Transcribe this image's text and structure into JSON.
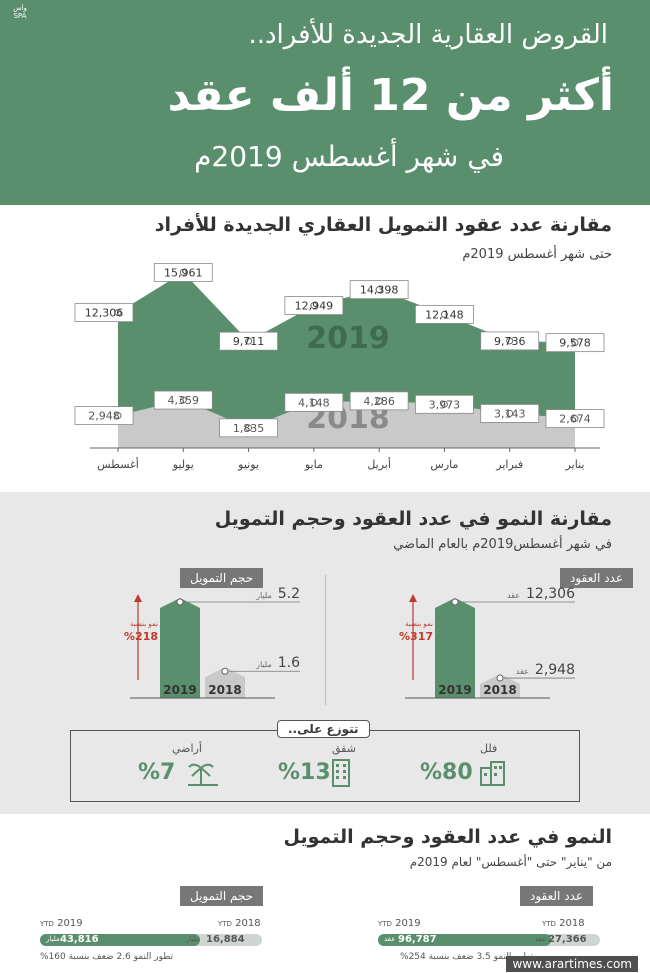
{
  "header": {
    "line1": "القروض العقارية الجديدة للأفراد..",
    "line2": "أكثر من 12 ألف عقد",
    "line3": "في شهر أغسطس 2019م",
    "logo": "واس SPA"
  },
  "section1": {
    "title": "مقارنة عدد عقود التمويل العقاري الجديدة للأفراد",
    "subtitle": "حتى شهر أغسطس 2019م"
  },
  "chart_data": [
    {
      "type": "area",
      "categories": [
        "يناير",
        "فبراير",
        "مارس",
        "أبريل",
        "مايو",
        "يونيو",
        "يوليو",
        "أغسطس"
      ],
      "series": [
        {
          "name": "2019",
          "values": [
            9578,
            9736,
            12148,
            14398,
            12949,
            9711,
            15961,
            12306
          ],
          "labels": [
            "9,578",
            "9,736",
            "12,148",
            "14,398",
            "12,949",
            "9,711",
            "15,961",
            "12,306"
          ]
        },
        {
          "name": "2018",
          "values": [
            2674,
            3143,
            3973,
            4286,
            4148,
            1835,
            4359,
            2948
          ],
          "labels": [
            "2,674",
            "3,143",
            "3,973",
            "4,286",
            "4,148",
            "1,835",
            "4,359",
            "2,948"
          ]
        }
      ],
      "ylim": [
        0,
        18000
      ],
      "colors": {
        "2019": "#5a8f6e",
        "2018": "#c9c9c9"
      }
    },
    {
      "type": "bar",
      "tag": "عدد العقود",
      "categories": [
        "2019",
        "2018"
      ],
      "values": [
        12306,
        2948
      ],
      "labels": [
        "12,306",
        "2,948"
      ],
      "unit": "عقد",
      "growth_label": "نمو بنسبة",
      "growth": "%317"
    },
    {
      "type": "bar",
      "tag": "حجم التمويل",
      "categories": [
        "2019",
        "2018"
      ],
      "values": [
        5.2,
        1.6
      ],
      "labels": [
        "5.2",
        "1.6"
      ],
      "unit": "مليار",
      "growth_label": "نمو بنسبة",
      "growth": "%218"
    }
  ],
  "section2": {
    "title": "مقارنة النمو في عدد العقود وحجم التمويل",
    "subtitle": "في شهر أغسطس2019م بالعام الماضي"
  },
  "distribution": {
    "tag": "تتوزع على..",
    "items": [
      {
        "label": "فلل",
        "pct": "%80"
      },
      {
        "label": "شقق",
        "pct": "%13"
      },
      {
        "label": "أراضي",
        "pct": "%7"
      }
    ]
  },
  "section3": {
    "title": "النمو في عدد العقود وحجم التمويل",
    "subtitle": "من \"يناير\" حتى \"أغسطس\" لعام 2019م",
    "contracts": {
      "tag": "عدد العقود",
      "y2019": "2019",
      "y2018": "2018",
      "ytd": "YTD",
      "v2019": "96,787",
      "v2018": "27,366",
      "unit": "عقد",
      "fill": 0.78,
      "growth": "تطور النمو 3.5 ضعف بنسبة 254%"
    },
    "financing": {
      "tag": "حجم التمويل",
      "y2019": "2019",
      "y2018": "2018",
      "ytd": "YTD",
      "v2019": "43,816",
      "v2018": "16,884",
      "unit": "مليار",
      "fill": 0.72,
      "growth": "تطور النمو 2.6 ضعف بنسبة 160%"
    }
  },
  "watermark": "www.arartimes.com"
}
